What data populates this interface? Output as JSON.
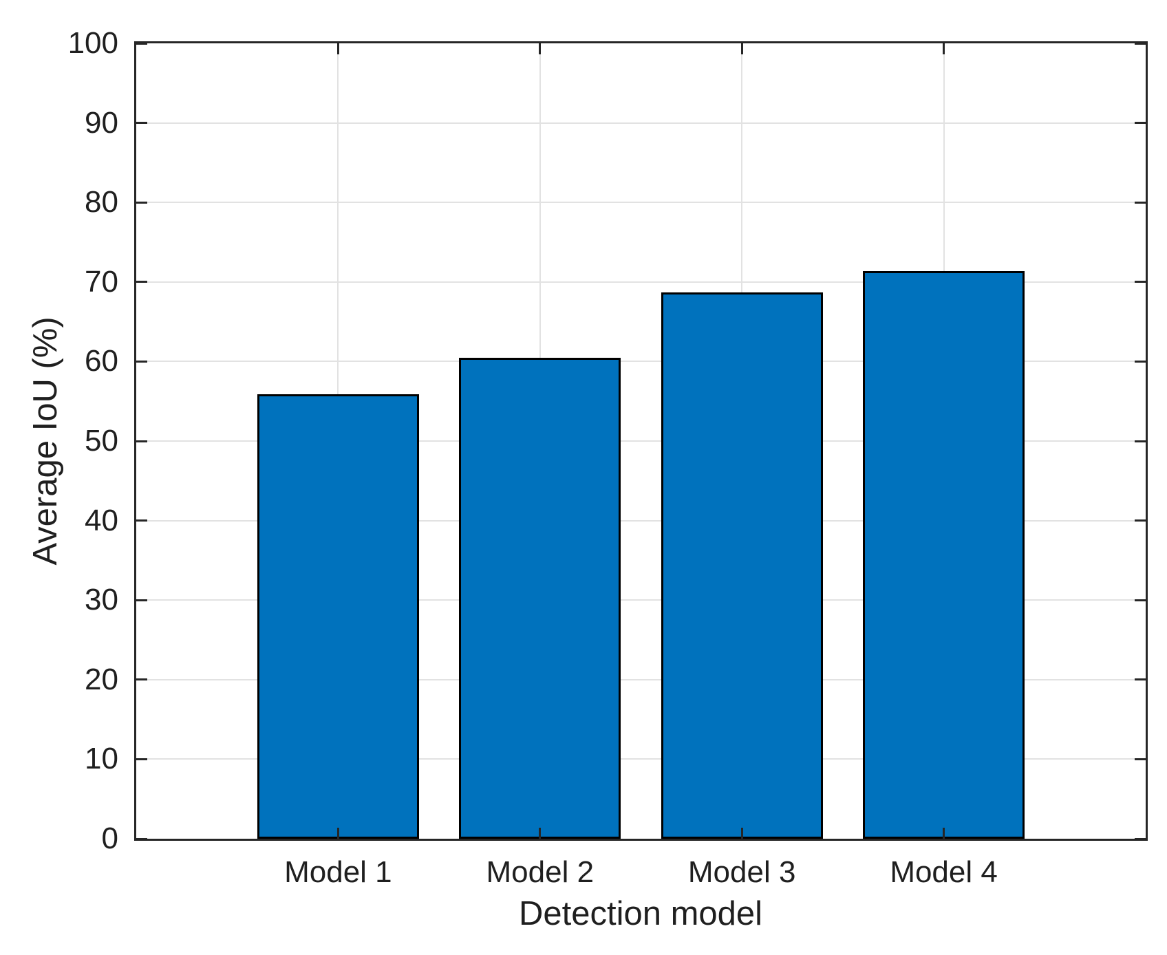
{
  "chart_data": {
    "type": "bar",
    "title": "",
    "categories": [
      "Model 1",
      "Model 2",
      "Model 3",
      "Model 4"
    ],
    "values": [
      55.9,
      60.5,
      68.7,
      71.4
    ],
    "xlabel": "Detection model",
    "ylabel": "Average IoU (%)",
    "ylim": [
      0,
      100
    ],
    "ytick_step": 10,
    "ytick_labels": [
      "0",
      "10",
      "20",
      "30",
      "40",
      "50",
      "60",
      "70",
      "80",
      "90",
      "100"
    ],
    "xlim": [
      0,
      5
    ],
    "bar_width_units": 0.8,
    "grid": "on",
    "legend": "none",
    "colors": {
      "bar_fill": "#0072BD",
      "bar_edge": "#000000",
      "axis": "#262626",
      "grid": "#e2e2e2",
      "text": "#1f1f1f",
      "background": "#ffffff"
    }
  }
}
